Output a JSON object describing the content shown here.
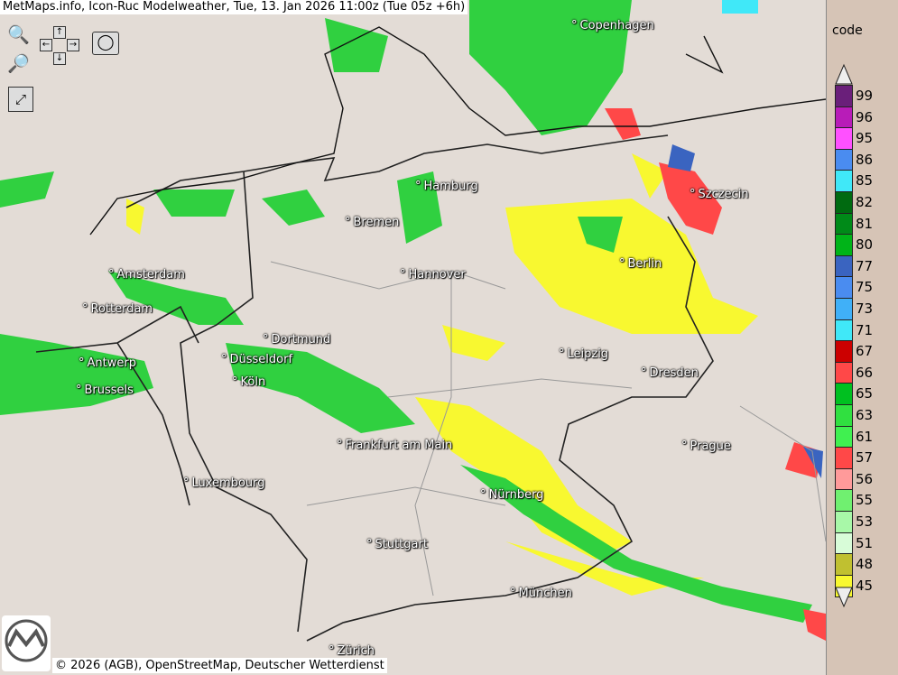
{
  "title": "MetMaps.info, Icon-Ruc Modelweather, Tue, 13. Jan 2026 11:00z (Tue 05z +6h)",
  "copyright": "© 2026 (AGB), OpenStreetMap, Deutscher Wetterdienst",
  "logo_text": "METMAPS",
  "controls": {
    "zoom_in": "zoom-in",
    "zoom_out": "zoom-out",
    "pan": [
      "up",
      "down",
      "left",
      "right"
    ],
    "fullscreen": "fullscreen",
    "snapshot": "camera"
  },
  "cities": [
    "Copenhagen",
    "Hamburg",
    "Bremen",
    "Amsterdam",
    "Hannover",
    "Berlin",
    "Rotterdam",
    "Szczecin",
    "Dortmund",
    "Antwerp",
    "Düsseldorf",
    "Leipzig",
    "Brussels",
    "Köln",
    "Dresden",
    "Frankfurt am Main",
    "Prague",
    "Luxembourg",
    "Nürnberg",
    "Stuttgart",
    "München",
    "Zürich"
  ],
  "legend": {
    "title": "code",
    "items": [
      {
        "code": "99",
        "color": "#6a1f7a"
      },
      {
        "code": "96",
        "color": "#b81cb8"
      },
      {
        "code": "95",
        "color": "#ff50ff"
      },
      {
        "code": "86",
        "color": "#4a8cf0"
      },
      {
        "code": "85",
        "color": "#40e8f8"
      },
      {
        "code": "82",
        "color": "#006a10"
      },
      {
        "code": "81",
        "color": "#008a18"
      },
      {
        "code": "80",
        "color": "#00b418"
      },
      {
        "code": "77",
        "color": "#3a64c0"
      },
      {
        "code": "75",
        "color": "#4a8cf0"
      },
      {
        "code": "73",
        "color": "#40b0f8"
      },
      {
        "code": "71",
        "color": "#40e8f8"
      },
      {
        "code": "67",
        "color": "#cc0000"
      },
      {
        "code": "66",
        "color": "#ff4848"
      },
      {
        "code": "65",
        "color": "#00c020"
      },
      {
        "code": "63",
        "color": "#30e040"
      },
      {
        "code": "61",
        "color": "#40f050"
      },
      {
        "code": "57",
        "color": "#ff4848"
      },
      {
        "code": "56",
        "color": "#ff9a9a"
      },
      {
        "code": "55",
        "color": "#70f070"
      },
      {
        "code": "53",
        "color": "#a8f8a8"
      },
      {
        "code": "51",
        "color": "#d8fcd8"
      },
      {
        "code": "48",
        "color": "#c0c030"
      },
      {
        "code": "45",
        "color": "#f8f830"
      }
    ]
  }
}
